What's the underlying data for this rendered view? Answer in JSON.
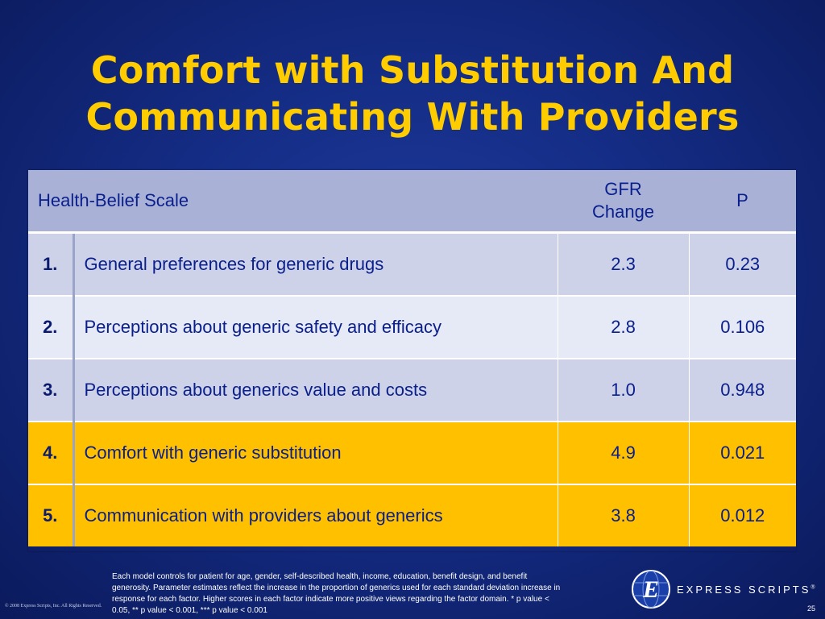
{
  "slide": {
    "title_line1": "Comfort with Substitution And",
    "title_line2": "Communicating With Providers",
    "page_number": "25"
  },
  "table": {
    "headers": {
      "scale": "Health-Belief Scale",
      "gfr_line1": "GFR",
      "gfr_line2": "Change",
      "p": "P"
    },
    "rows": [
      {
        "num": "1.",
        "label": "General preferences for generic drugs",
        "gfr": "2.3",
        "p": "0.23"
      },
      {
        "num": "2.",
        "label": "Perceptions about generic safety and efficacy",
        "gfr": "2.8",
        "p": "0.106"
      },
      {
        "num": "3.",
        "label": "Perceptions about generics value and costs",
        "gfr": "1.0",
        "p": "0.948"
      },
      {
        "num": "4.",
        "label": "Comfort with generic substitution",
        "gfr": "4.9",
        "p": "0.021"
      },
      {
        "num": "5.",
        "label": "Communication with providers about generics",
        "gfr": "3.8",
        "p": "0.012"
      }
    ]
  },
  "footnote": "Each model controls for patient for age, gender, self-described health, income, education, benefit design, and benefit generosity.  Parameter estimates reflect the increase in the proportion of generics used for each standard deviation increase in response for each factor. Higher scores in each factor indicate more positive views regarding the factor domain. * p value < 0.05, ** p value < 0.001, *** p value < 0.001",
  "copyright": "© 2008 Express Scripts, Inc. All Rights Reserved.",
  "brand": {
    "name": "EXPRESS SCRIPTS",
    "mark": "®",
    "logo_icon": "express-scripts-globe-e-logo"
  },
  "colors": {
    "background": "#142c84",
    "title": "#ffcc00",
    "highlight_row": "#ffc000",
    "text": "#0a1f8c"
  }
}
